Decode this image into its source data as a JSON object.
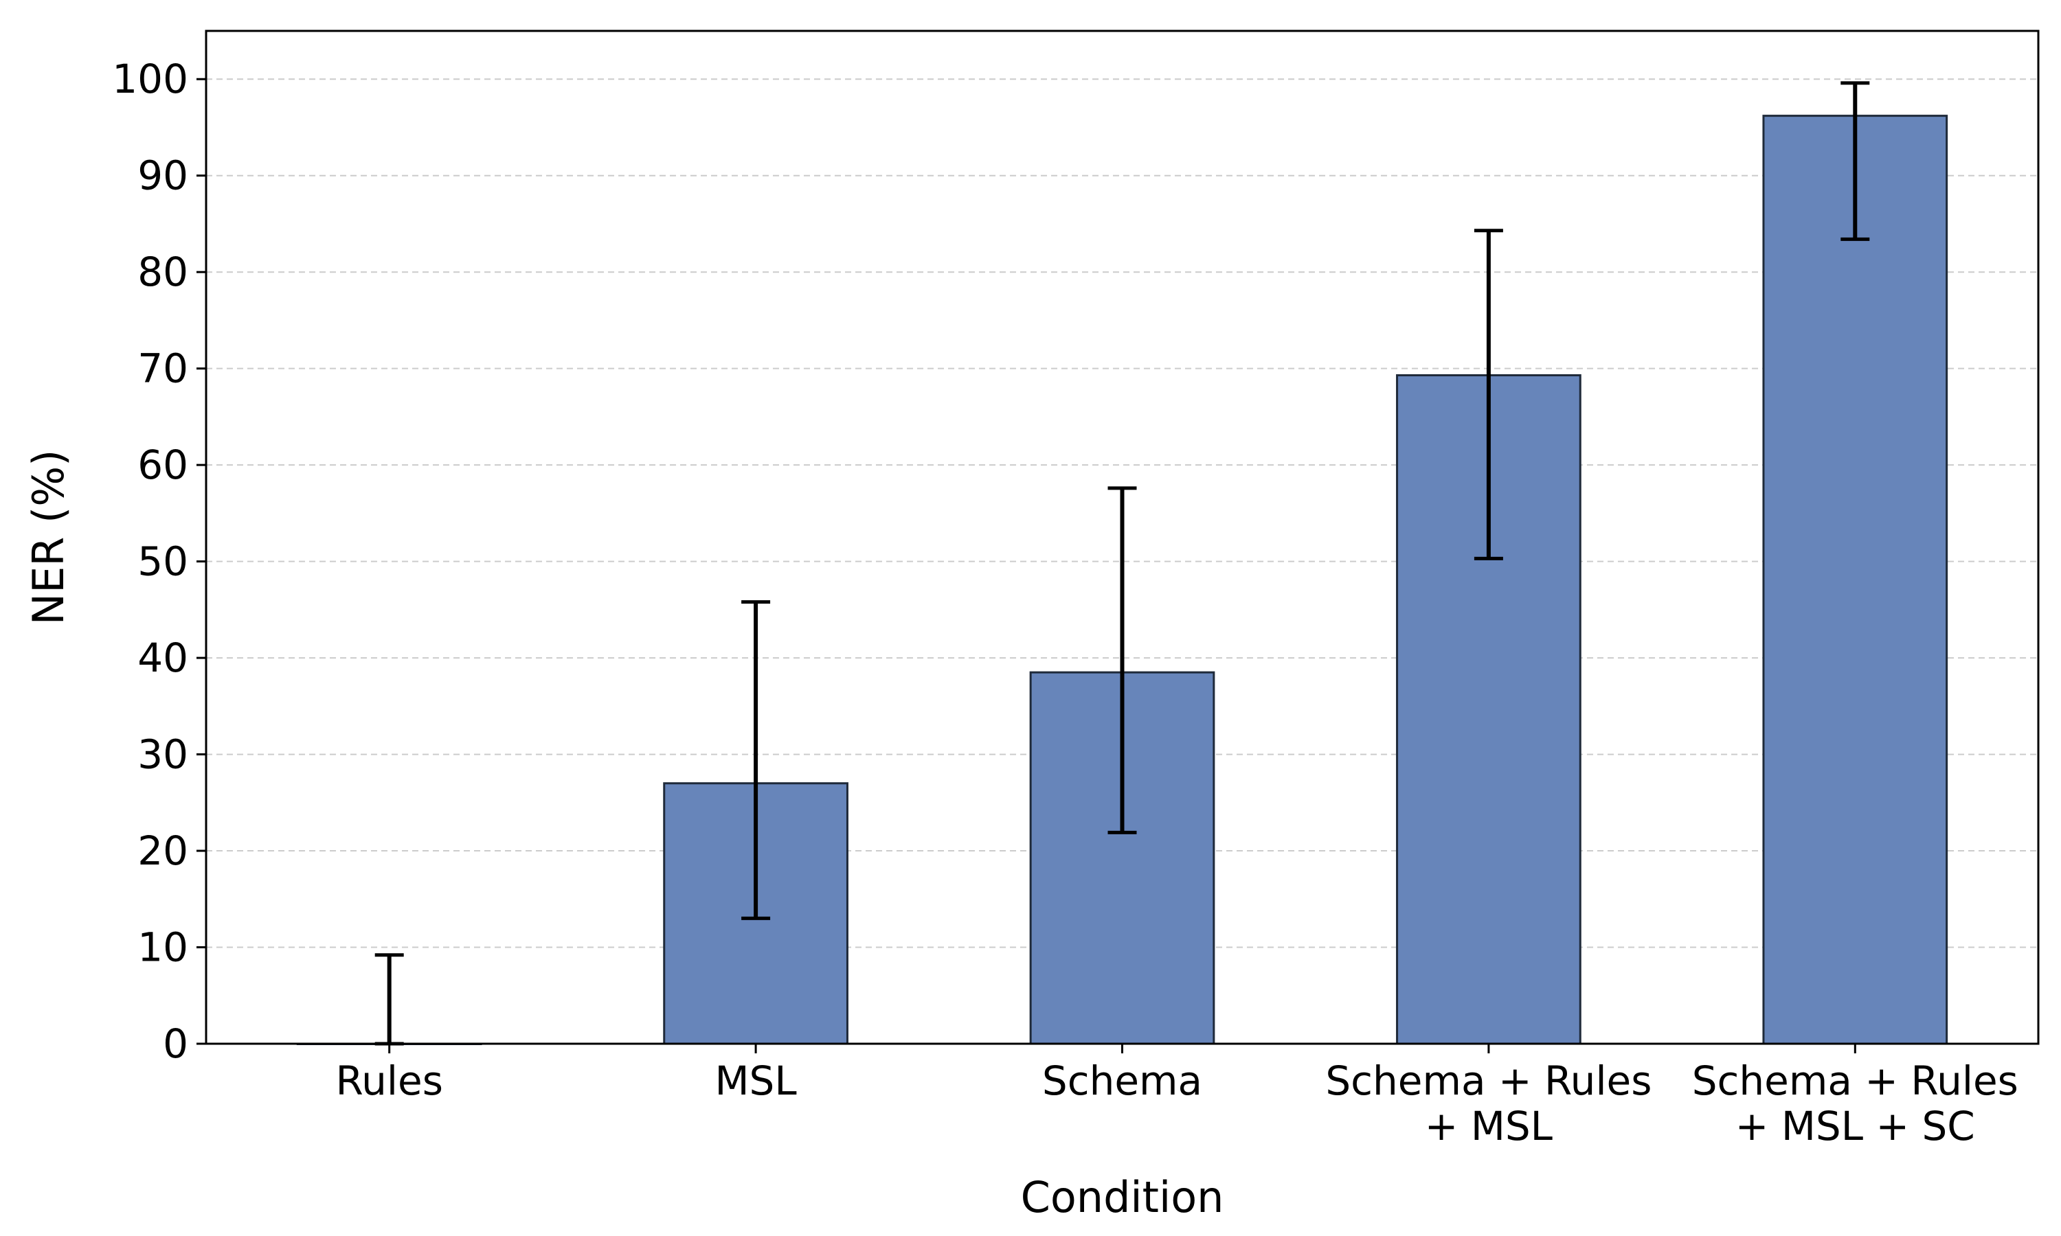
{
  "chart_data": {
    "type": "bar",
    "title": "",
    "xlabel": "Condition",
    "ylabel": "NER (%)",
    "categories": [
      [
        "Rules"
      ],
      [
        "MSL"
      ],
      [
        "Schema"
      ],
      [
        "Schema + Rules",
        "+ MSL"
      ],
      [
        "Schema + Rules",
        "+ MSL + SC"
      ]
    ],
    "values": [
      0,
      27,
      38.5,
      69.3,
      96.2
    ],
    "error_low": [
      0,
      13,
      21.9,
      50.3,
      83.4
    ],
    "error_high": [
      9.2,
      45.8,
      57.6,
      84.3,
      99.6
    ],
    "ylim": [
      0,
      105
    ],
    "yticks": [
      0,
      10,
      20,
      30,
      40,
      50,
      60,
      70,
      80,
      90,
      100
    ],
    "grid": "y-dashed",
    "colors": {
      "bar": "#6785ba",
      "bar_edge": "#1f2a3a",
      "error_bar": "#000000",
      "grid": "#cccccc",
      "axis": "#000000"
    }
  }
}
